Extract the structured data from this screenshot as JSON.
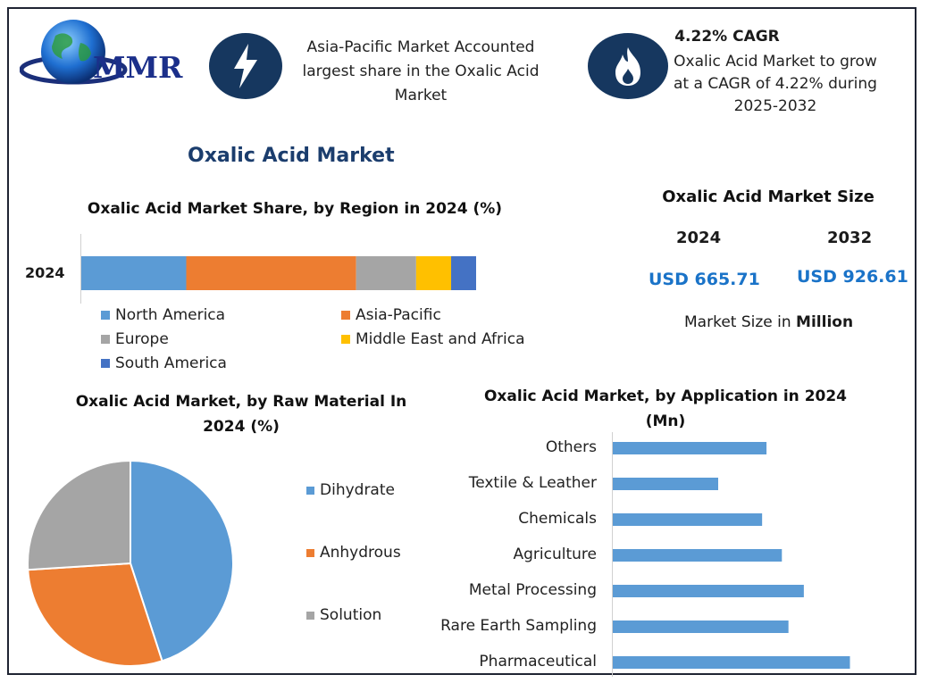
{
  "brand": {
    "logo_text": "MMR"
  },
  "highlights": [
    {
      "icon": "lightning-icon",
      "text": "Asia-Pacific Market Accounted largest share in the Oxalic Acid Market"
    },
    {
      "icon": "flame-icon",
      "heading": "4.22% CAGR",
      "text": "Oxalic Acid Market to grow at a CAGR of 4.22% during 2025-2032"
    }
  ],
  "main_title": "Oxalic Acid Market",
  "market_size": {
    "title": "Oxalic Acid Market Size",
    "year_a": "2024",
    "year_b": "2032",
    "value_a": "USD 665.71",
    "value_b": "USD 926.61",
    "note_prefix": "Market Size in ",
    "note_bold": "Million"
  },
  "chart_data": [
    {
      "type": "bar",
      "orientation": "horizontal-stacked",
      "title": "Oxalic Acid Market Share, by Region in 2024 (%)",
      "categories": [
        "2024"
      ],
      "series": [
        {
          "name": "North America",
          "values": [
            21
          ],
          "color": "#5b9bd5"
        },
        {
          "name": "Asia-Pacific",
          "values": [
            34
          ],
          "color": "#ed7d31"
        },
        {
          "name": "Europe",
          "values": [
            12
          ],
          "color": "#a5a5a5"
        },
        {
          "name": "Middle East and Africa",
          "values": [
            7
          ],
          "color": "#ffc000"
        },
        {
          "name": "South America",
          "values": [
            5
          ],
          "color": "#4472c4"
        }
      ],
      "legend": "bottom"
    },
    {
      "type": "pie",
      "title": "Oxalic Acid Market, by Raw Material In 2024 (%)",
      "slices": [
        {
          "name": "Dihydrate",
          "value": 45,
          "color": "#5b9bd5"
        },
        {
          "name": "Anhydrous",
          "value": 29,
          "color": "#ed7d31"
        },
        {
          "name": "Solution",
          "value": 26,
          "color": "#a5a5a5"
        }
      ],
      "legend": "right"
    },
    {
      "type": "bar",
      "orientation": "horizontal",
      "title": "Oxalic Acid Market, by Application in 2024 (Mn)",
      "categories": [
        "Others",
        "Textile & Leather",
        "Chemicals",
        "Agriculture",
        "Metal Processing",
        "Rare Earth Sampling",
        "Pharmaceutical"
      ],
      "values": [
        70,
        48,
        68,
        77,
        87,
        80,
        108
      ],
      "xlim": [
        0,
        120
      ],
      "color": "#5b9bd5"
    }
  ]
}
